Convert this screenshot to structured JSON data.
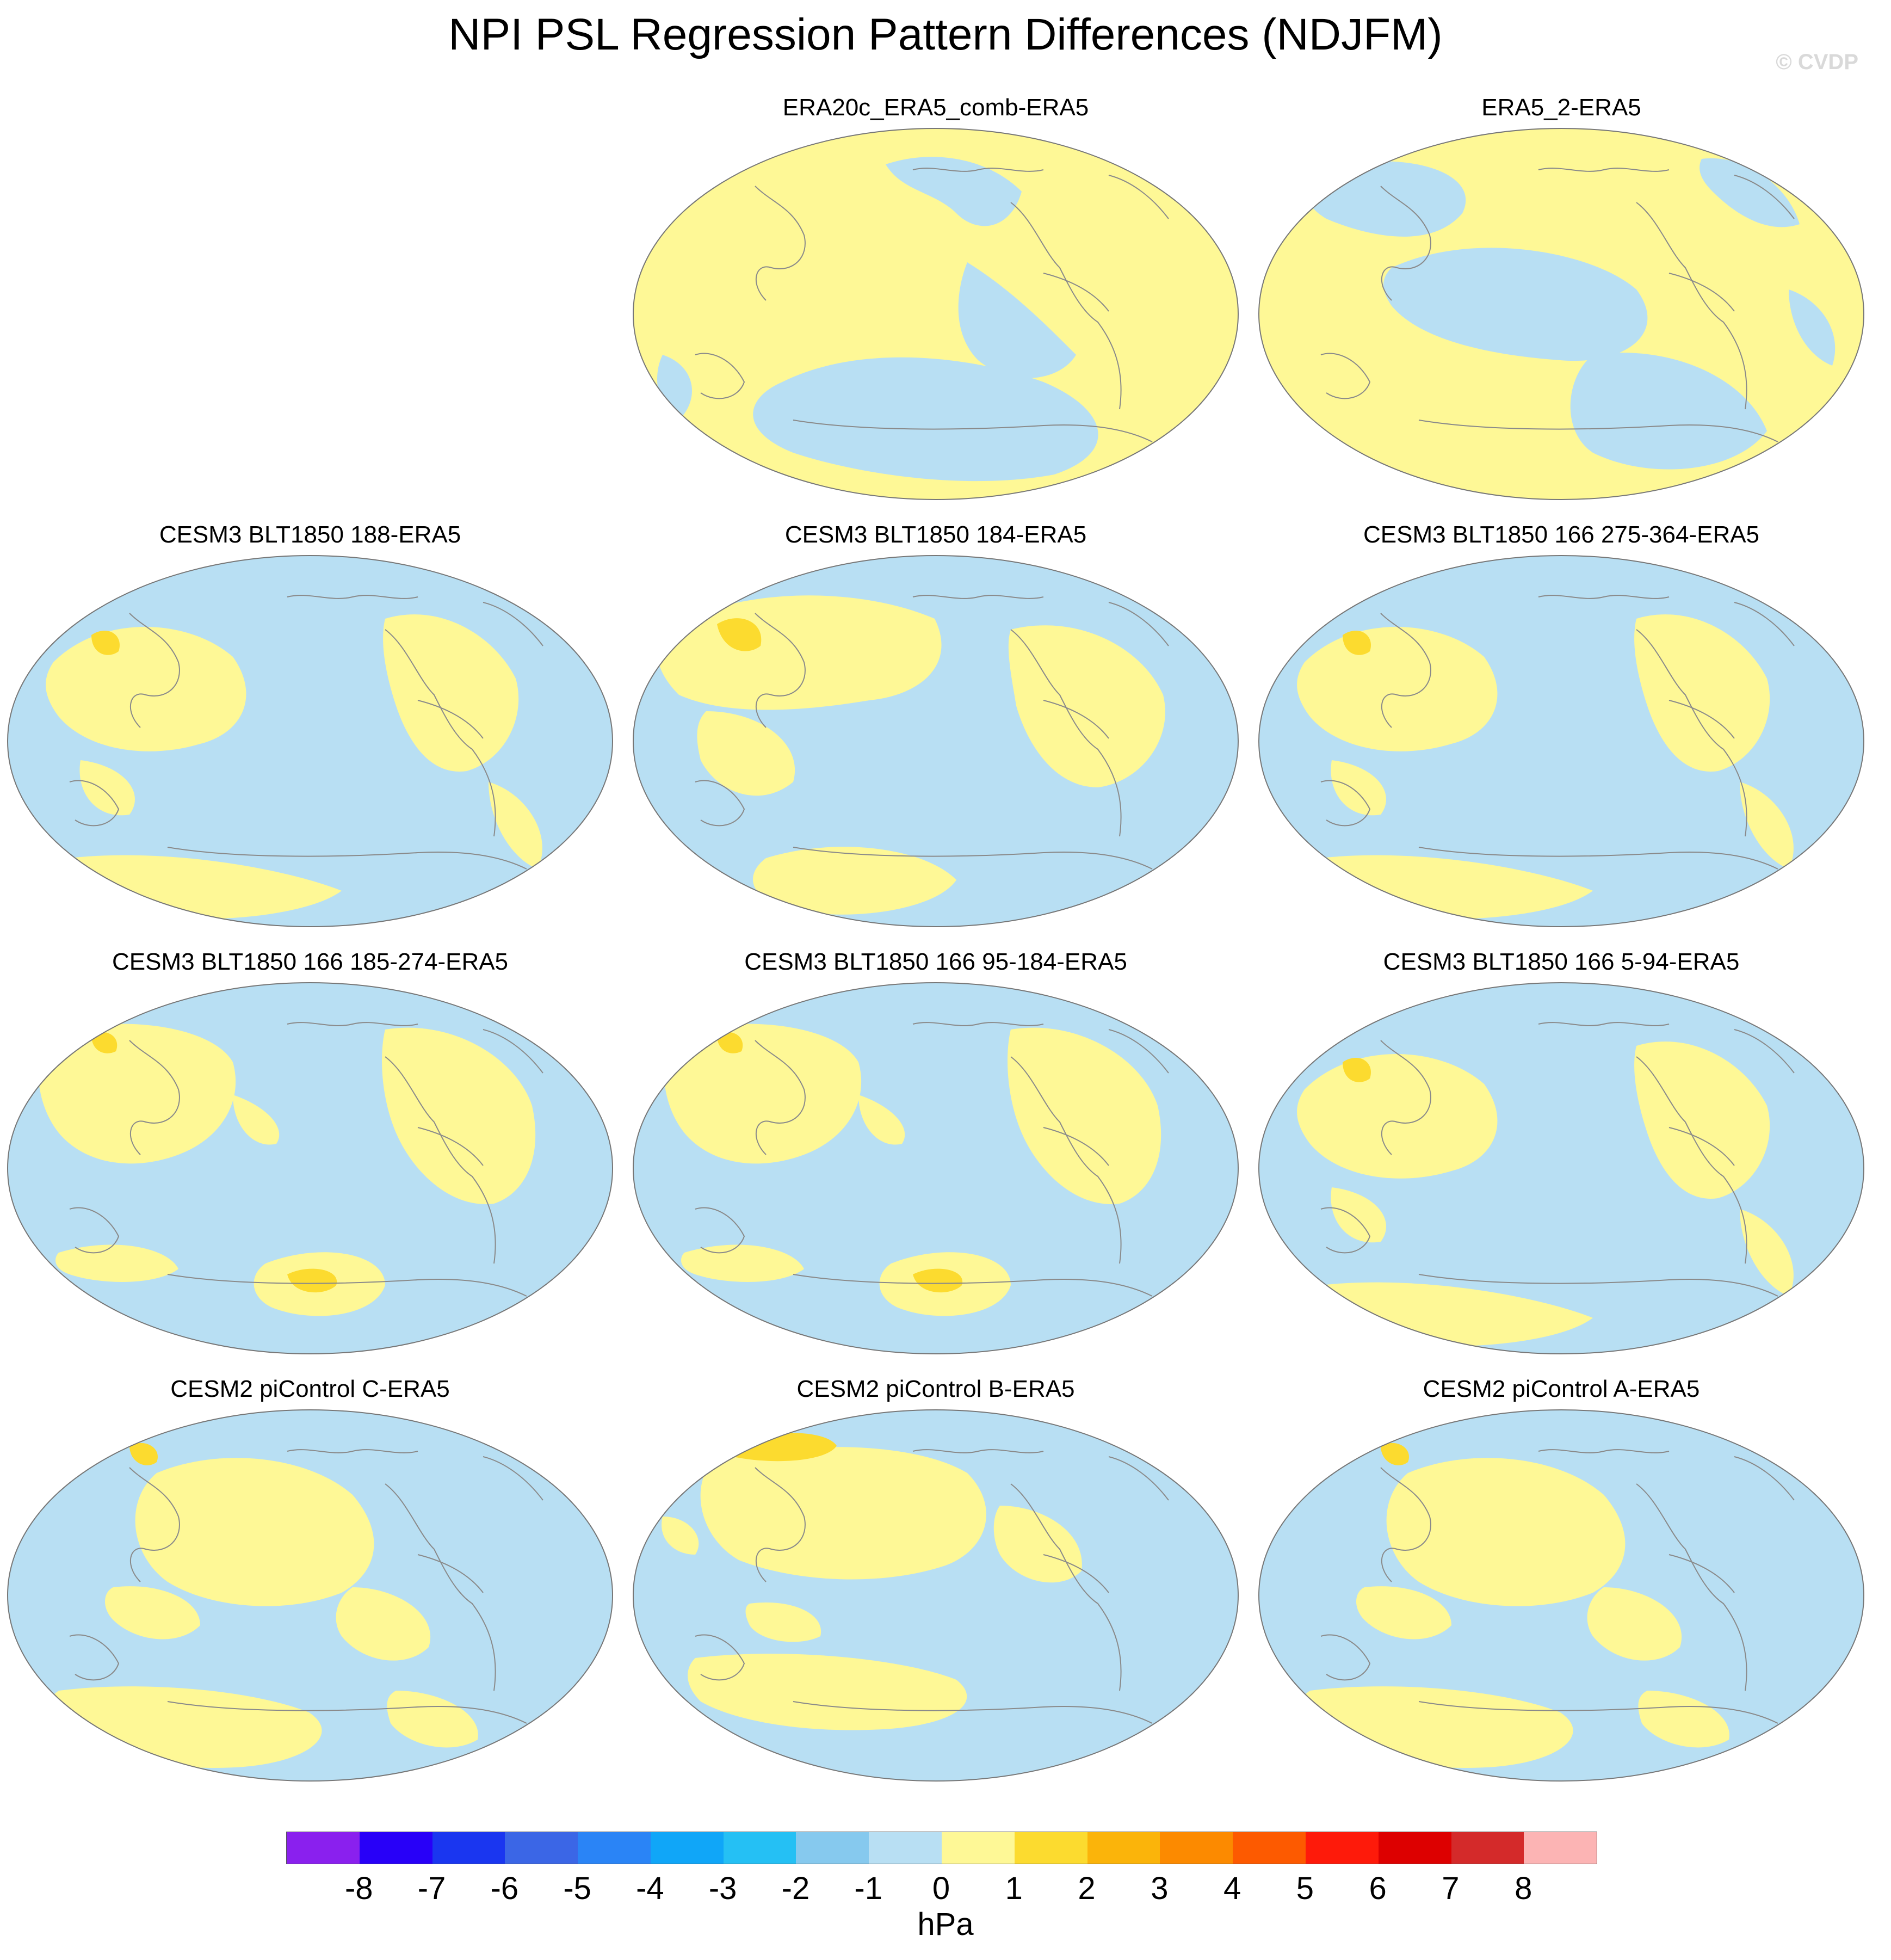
{
  "title": "NPI PSL Regression Pattern Differences (NDJFM)",
  "watermark": "© CVDP",
  "colors": {
    "positive_light": "#fef896",
    "positive_mid": "#fcdb2f",
    "negative_light": "#b8dff3",
    "negative_mid": "#86c9ee",
    "coastline": "#8a8a8a"
  },
  "panels": [
    {
      "title": "ERA20c_ERA5_comb-ERA5",
      "pattern": "a"
    },
    {
      "title": "ERA5_2-ERA5",
      "pattern": "b"
    },
    {
      "title": "CESM3 BLT1850 188-ERA5",
      "pattern": "c"
    },
    {
      "title": "CESM3 BLT1850 184-ERA5",
      "pattern": "d"
    },
    {
      "title": "CESM3 BLT1850 166 275-364-ERA5",
      "pattern": "c"
    },
    {
      "title": "CESM3 BLT1850 166 185-274-ERA5",
      "pattern": "e"
    },
    {
      "title": "CESM3 BLT1850 166 95-184-ERA5",
      "pattern": "e"
    },
    {
      "title": "CESM3 BLT1850 166 5-94-ERA5",
      "pattern": "c"
    },
    {
      "title": "CESM2 piControl C-ERA5",
      "pattern": "f"
    },
    {
      "title": "CESM2 piControl B-ERA5",
      "pattern": "g"
    },
    {
      "title": "CESM2 piControl A-ERA5",
      "pattern": "f"
    }
  ],
  "colorbar": {
    "labels": [
      "-8",
      "-7",
      "-6",
      "-5",
      "-4",
      "-3",
      "-2",
      "-1",
      "0",
      "1",
      "2",
      "3",
      "4",
      "5",
      "6",
      "7",
      "8"
    ],
    "colors": [
      "#8a20ee",
      "#2800f8",
      "#1a36f0",
      "#3b66e6",
      "#2a84f6",
      "#10a6f8",
      "#25c0f4",
      "#86c9ee",
      "#b8dff3",
      "#fef896",
      "#fcdb2f",
      "#fbb40a",
      "#fc8a00",
      "#fd5a00",
      "#fe1a0a",
      "#dd0000",
      "#d42a2a",
      "#fcb4b4"
    ],
    "units": "hPa"
  }
}
